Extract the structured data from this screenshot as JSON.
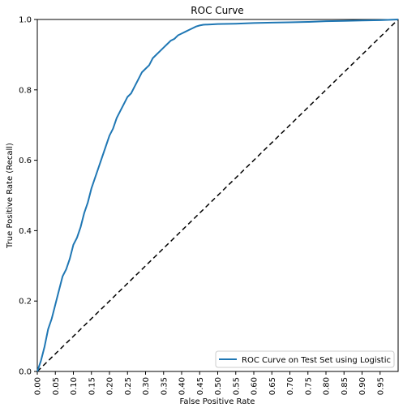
{
  "chart_data": {
    "type": "line",
    "title": "ROC Curve",
    "xlabel": "False Positive Rate",
    "ylabel": "True Positive Rate (Recall)",
    "xlim": [
      0.0,
      1.0
    ],
    "ylim": [
      0.0,
      1.0
    ],
    "xticks": [
      "0.00",
      "0.05",
      "0.10",
      "0.15",
      "0.20",
      "0.25",
      "0.30",
      "0.35",
      "0.40",
      "0.45",
      "0.50",
      "0.55",
      "0.60",
      "0.65",
      "0.70",
      "0.75",
      "0.80",
      "0.85",
      "0.90",
      "0.95"
    ],
    "yticks": [
      "0.0",
      "0.2",
      "0.4",
      "0.6",
      "0.8",
      "1.0"
    ],
    "grid": false,
    "legend_position": "bottom-right",
    "series": [
      {
        "name": "ROC Curve on Test Set using Logistic",
        "color": "#1f77b4",
        "style": "solid",
        "x": [
          0.0,
          0.01,
          0.02,
          0.03,
          0.04,
          0.05,
          0.06,
          0.07,
          0.08,
          0.09,
          0.1,
          0.11,
          0.12,
          0.13,
          0.14,
          0.15,
          0.16,
          0.17,
          0.18,
          0.19,
          0.2,
          0.21,
          0.22,
          0.23,
          0.24,
          0.25,
          0.26,
          0.27,
          0.28,
          0.29,
          0.3,
          0.31,
          0.32,
          0.33,
          0.34,
          0.35,
          0.36,
          0.37,
          0.38,
          0.39,
          0.4,
          0.41,
          0.42,
          0.43,
          0.44,
          0.45,
          0.46,
          0.48,
          0.5,
          0.55,
          0.6,
          0.65,
          0.7,
          0.75,
          0.8,
          0.85,
          0.9,
          0.95,
          1.0
        ],
        "y": [
          0.0,
          0.03,
          0.07,
          0.12,
          0.15,
          0.19,
          0.23,
          0.27,
          0.29,
          0.32,
          0.36,
          0.38,
          0.41,
          0.45,
          0.48,
          0.52,
          0.55,
          0.58,
          0.61,
          0.64,
          0.67,
          0.69,
          0.72,
          0.74,
          0.76,
          0.78,
          0.79,
          0.81,
          0.83,
          0.85,
          0.86,
          0.87,
          0.89,
          0.9,
          0.91,
          0.92,
          0.93,
          0.94,
          0.945,
          0.955,
          0.96,
          0.965,
          0.97,
          0.975,
          0.98,
          0.983,
          0.985,
          0.986,
          0.987,
          0.988,
          0.99,
          0.991,
          0.992,
          0.993,
          0.995,
          0.996,
          0.997,
          0.998,
          1.0
        ]
      },
      {
        "name": "",
        "color": "#000000",
        "style": "dashed",
        "x": [
          0.0,
          1.0
        ],
        "y": [
          0.0,
          1.0
        ]
      }
    ]
  }
}
